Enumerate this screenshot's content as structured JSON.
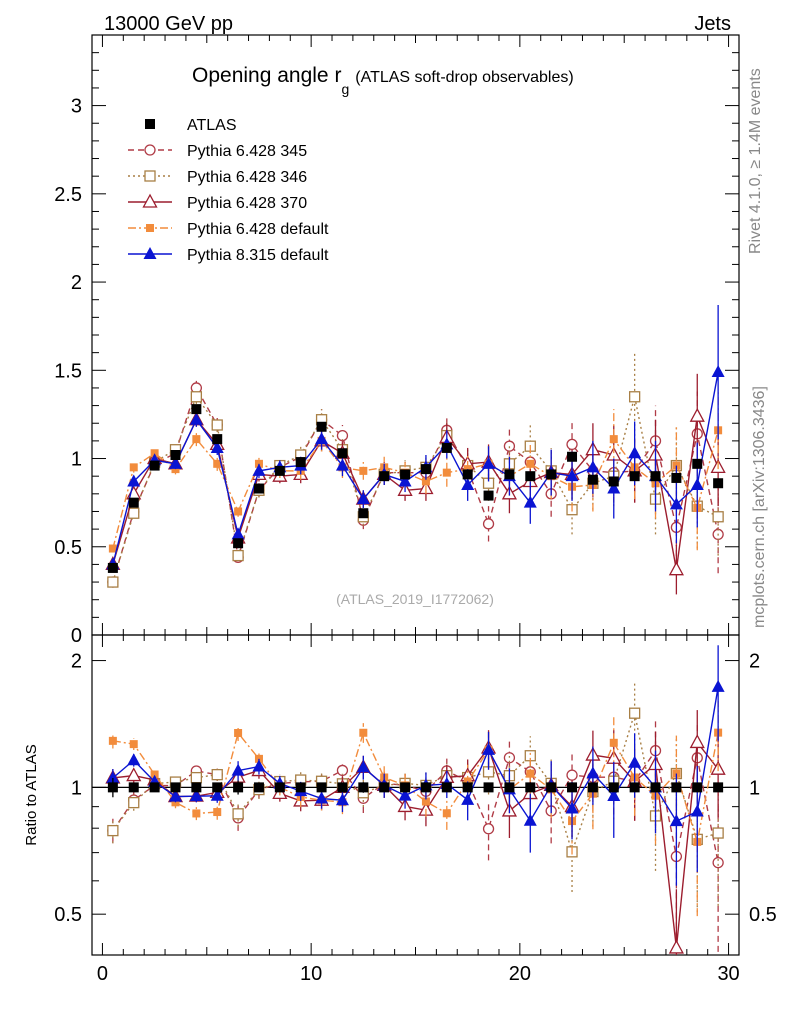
{
  "header": {
    "left": "13000 GeV pp",
    "right": "Jets"
  },
  "side_labels": {
    "rivet": "Rivet 4.1.0, ≥ 1.4M events",
    "mcplots": "mcplots.cern.ch [arXiv:1306.3436]"
  },
  "chart_data": {
    "type": "scatter",
    "title": "Opening angle r",
    "title_subscript": "g",
    "subtitle": "(ATLAS soft-drop observables)",
    "analysis_id": "(ATLAS_2019_I1772062)",
    "xlabel": "",
    "ylabel": "",
    "ratio_ylabel": "Ratio to ATLAS",
    "xlim": [
      -0.5,
      30.5
    ],
    "ylim": [
      0,
      3.4
    ],
    "ratio_ylim": [
      0.4,
      2.3
    ],
    "x_ticks": [
      0,
      10,
      20,
      30
    ],
    "y_ticks": [
      0,
      0.5,
      1,
      1.5,
      2,
      2.5,
      3
    ],
    "y_tick_labels": [
      "0",
      "0.5",
      "1",
      "1.5",
      "2",
      "2.5",
      "3"
    ],
    "ratio_y_ticks": [
      0.5,
      1,
      2
    ],
    "ratio_y_tick_labels": [
      "0.5",
      "1",
      "2"
    ],
    "x": [
      0.5,
      1.5,
      2.5,
      3.5,
      4.5,
      5.5,
      6.5,
      7.5,
      8.5,
      9.5,
      10.5,
      11.5,
      12.5,
      13.5,
      14.5,
      15.5,
      16.5,
      17.5,
      18.5,
      19.5,
      20.5,
      21.5,
      22.5,
      23.5,
      24.5,
      25.5,
      26.5,
      27.5,
      28.5,
      29.5
    ],
    "series": [
      {
        "name": "ATLAS",
        "color": "#000000",
        "marker": "square-filled",
        "line": "none",
        "values": [
          0.38,
          0.75,
          0.96,
          1.02,
          1.28,
          1.11,
          0.52,
          0.83,
          0.93,
          0.98,
          1.18,
          1.03,
          0.69,
          0.9,
          0.91,
          0.94,
          1.06,
          0.91,
          0.79,
          0.91,
          0.9,
          0.91,
          1.01,
          0.88,
          0.87,
          0.9,
          0.9,
          0.89,
          0.97,
          0.86
        ],
        "errors": [
          0.02,
          0.02,
          0.02,
          0.02,
          0.02,
          0.02,
          0.02,
          0.02,
          0.02,
          0.02,
          0.02,
          0.02,
          0.02,
          0.02,
          0.02,
          0.02,
          0.02,
          0.02,
          0.02,
          0.02,
          0.02,
          0.02,
          0.02,
          0.02,
          0.02,
          0.02,
          0.02,
          0.02,
          0.02,
          0.02
        ]
      },
      {
        "name": "Pythia 6.428 345",
        "color": "#b03b46",
        "marker": "circle-open",
        "line": "dashed",
        "values": [
          0.3,
          0.7,
          0.97,
          1.03,
          1.4,
          1.19,
          0.44,
          0.82,
          0.95,
          1.01,
          1.22,
          1.13,
          0.65,
          0.92,
          0.92,
          0.92,
          1.16,
          0.94,
          0.63,
          1.07,
          0.98,
          0.8,
          1.08,
          0.93,
          0.92,
          0.93,
          1.1,
          0.61,
          1.14,
          0.57
        ],
        "errors": [
          0.02,
          0.03,
          0.03,
          0.03,
          0.04,
          0.04,
          0.03,
          0.04,
          0.04,
          0.05,
          0.06,
          0.06,
          0.05,
          0.06,
          0.06,
          0.07,
          0.08,
          0.09,
          0.1,
          0.11,
          0.12,
          0.13,
          0.14,
          0.15,
          0.17,
          0.18,
          0.2,
          0.22,
          0.24,
          0.22
        ]
      },
      {
        "name": "Pythia 6.428 346",
        "color": "#a87f45",
        "marker": "square-open",
        "line": "dotted",
        "values": [
          0.3,
          0.69,
          0.98,
          1.05,
          1.35,
          1.19,
          0.45,
          0.82,
          0.96,
          1.02,
          1.22,
          1.05,
          0.67,
          0.91,
          0.93,
          0.95,
          1.13,
          0.96,
          0.86,
          0.97,
          1.07,
          0.93,
          0.71,
          0.86,
          0.9,
          1.35,
          0.77,
          0.96,
          0.73,
          0.67
        ],
        "errors": [
          0.02,
          0.03,
          0.03,
          0.03,
          0.04,
          0.04,
          0.03,
          0.04,
          0.04,
          0.05,
          0.06,
          0.06,
          0.05,
          0.06,
          0.06,
          0.07,
          0.08,
          0.09,
          0.1,
          0.11,
          0.12,
          0.13,
          0.14,
          0.15,
          0.17,
          0.25,
          0.2,
          0.22,
          0.24,
          0.22
        ]
      },
      {
        "name": "Pythia 6.428 370",
        "color": "#9c1d2e",
        "marker": "triangle-open",
        "line": "solid",
        "values": [
          0.4,
          0.8,
          1.0,
          0.97,
          1.22,
          1.08,
          0.55,
          0.91,
          0.9,
          0.91,
          1.1,
          1.03,
          0.77,
          0.91,
          0.82,
          0.83,
          1.12,
          0.97,
          0.98,
          0.8,
          0.87,
          0.92,
          0.91,
          1.05,
          1.02,
          0.93,
          1.02,
          0.37,
          1.24,
          0.95
        ],
        "errors": [
          0.02,
          0.03,
          0.03,
          0.03,
          0.04,
          0.04,
          0.03,
          0.04,
          0.04,
          0.05,
          0.06,
          0.06,
          0.05,
          0.06,
          0.06,
          0.07,
          0.08,
          0.09,
          0.1,
          0.11,
          0.12,
          0.13,
          0.14,
          0.15,
          0.17,
          0.18,
          0.2,
          0.14,
          0.24,
          0.22
        ]
      },
      {
        "name": "Pythia 6.428 default",
        "color": "#f28c3c",
        "marker": "square-filled-small",
        "line": "dashdot",
        "values": [
          0.49,
          0.95,
          1.03,
          0.94,
          1.11,
          0.97,
          0.7,
          0.97,
          0.93,
          0.93,
          1.1,
          0.95,
          0.93,
          0.95,
          0.92,
          0.87,
          0.92,
          0.94,
          0.97,
          0.9,
          0.97,
          0.9,
          0.84,
          0.85,
          1.11,
          0.95,
          0.86,
          0.96,
          0.72,
          1.16
        ],
        "errors": [
          0.02,
          0.03,
          0.03,
          0.03,
          0.04,
          0.04,
          0.03,
          0.04,
          0.04,
          0.05,
          0.06,
          0.06,
          0.05,
          0.06,
          0.06,
          0.07,
          0.08,
          0.09,
          0.1,
          0.11,
          0.12,
          0.13,
          0.14,
          0.15,
          0.17,
          0.18,
          0.2,
          0.22,
          0.24,
          0.22
        ]
      },
      {
        "name": "Pythia 8.315 default",
        "color": "#0a14d2",
        "marker": "triangle-filled",
        "line": "solid",
        "values": [
          0.4,
          0.87,
          0.99,
          0.97,
          1.22,
          1.06,
          0.57,
          0.93,
          0.95,
          0.96,
          1.11,
          0.96,
          0.77,
          0.91,
          0.87,
          0.95,
          1.08,
          0.85,
          0.97,
          0.9,
          0.75,
          0.92,
          0.9,
          0.95,
          0.83,
          1.03,
          0.9,
          0.74,
          0.85,
          1.49
        ],
        "errors": [
          0.02,
          0.03,
          0.03,
          0.03,
          0.04,
          0.04,
          0.03,
          0.04,
          0.04,
          0.05,
          0.06,
          0.06,
          0.05,
          0.06,
          0.06,
          0.07,
          0.08,
          0.09,
          0.1,
          0.11,
          0.12,
          0.13,
          0.14,
          0.15,
          0.17,
          0.18,
          0.2,
          0.22,
          0.24,
          0.38
        ]
      }
    ]
  }
}
